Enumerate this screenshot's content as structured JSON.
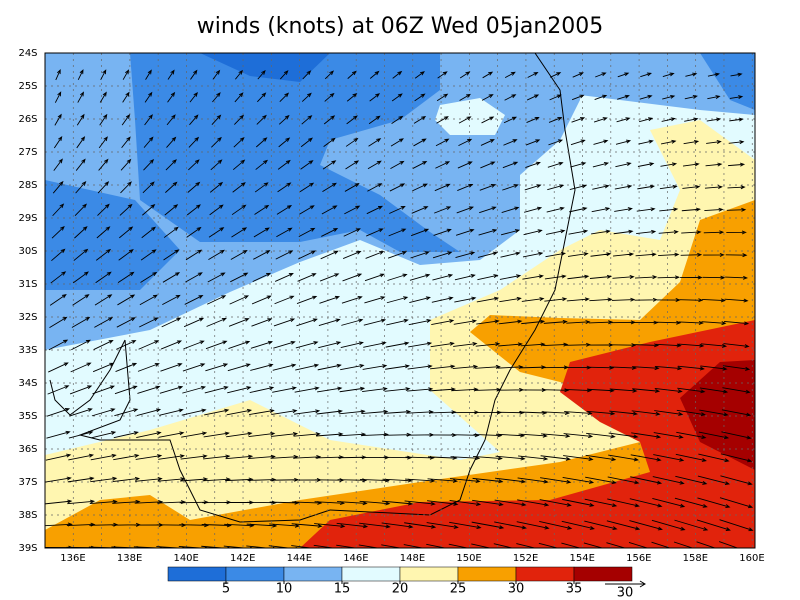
{
  "title": "winds (knots) at 06Z Wed 05jan2005",
  "map": {
    "lat_labels": [
      "24S",
      "25S",
      "26S",
      "27S",
      "28S",
      "29S",
      "30S",
      "31S",
      "32S",
      "33S",
      "34S",
      "35S",
      "36S",
      "37S",
      "38S",
      "39S"
    ],
    "lon_labels": [
      "136E",
      "138E",
      "140E",
      "142E",
      "144E",
      "146E",
      "148E",
      "150E",
      "152E",
      "154E",
      "156E",
      "158E",
      "160E"
    ]
  },
  "colorbar": {
    "levels": [
      5,
      10,
      15,
      20,
      25,
      30,
      35
    ],
    "colors": [
      "#1e6ed8",
      "#3b8ae6",
      "#78b4f2",
      "#e2fbff",
      "#fff6b0",
      "#f8a000",
      "#e1230c",
      "#a50000"
    ]
  },
  "vector_scale": {
    "label": "30"
  }
}
